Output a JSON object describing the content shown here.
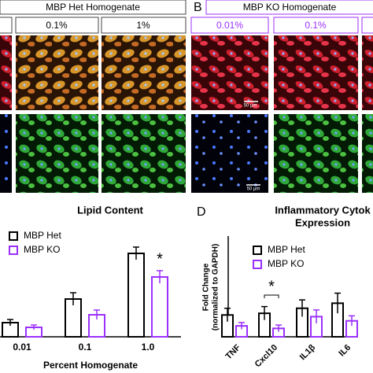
{
  "panels": {
    "a_header": "MBP Het Homogenate",
    "a_columns": [
      "0.1%",
      "1%"
    ],
    "b_label": "B",
    "b_header": "MBP KO Homogenate",
    "b_columns": [
      "0.01%",
      "0.1%"
    ],
    "scale_bars": [
      "50 µm",
      "50 µm"
    ]
  },
  "chart_data": [
    {
      "type": "bar",
      "title": "Lipid Content",
      "xlabel": "Percent Homogenate",
      "categories": [
        "0.01",
        "0.1",
        "1.0"
      ],
      "series": [
        {
          "name": "MBP Het",
          "color": "#000000",
          "values": [
            18,
            48,
            106
          ],
          "errors": [
            4,
            8,
            8
          ]
        },
        {
          "name": "MBP KO",
          "color": "#9b30ff",
          "values": [
            12,
            28,
            76
          ],
          "errors": [
            3,
            6,
            8
          ]
        }
      ],
      "ylim": [
        0,
        120
      ],
      "annotation": "*"
    },
    {
      "type": "bar",
      "panel_label": "D",
      "title": [
        "Inflammatory Cytok",
        "Expression"
      ],
      "ylabel": [
        "Fold Change",
        "(normalized to GAPDH)"
      ],
      "categories": [
        "TNF",
        "Cxcl10",
        "IL1β",
        "IL6"
      ],
      "series": [
        {
          "name": "MBP Het",
          "color": "#000000",
          "values": [
            1.3,
            1.4,
            1.7,
            2.0
          ],
          "errors": [
            0.4,
            0.4,
            0.5,
            0.6
          ]
        },
        {
          "name": "MBP KO",
          "color": "#9b30ff",
          "values": [
            0.65,
            0.5,
            1.2,
            0.95
          ],
          "errors": [
            0.2,
            0.2,
            0.4,
            0.3
          ]
        }
      ],
      "ylim": [
        0,
        6
      ],
      "annotation": "*"
    }
  ]
}
